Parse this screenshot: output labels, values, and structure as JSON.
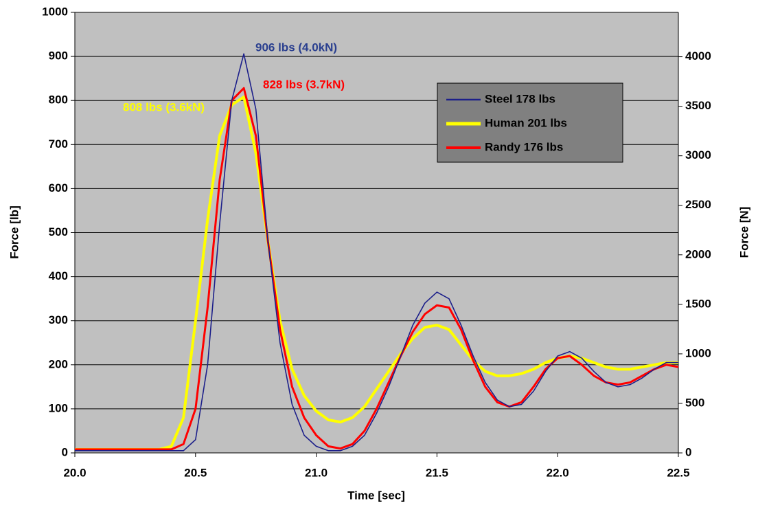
{
  "chart_data": {
    "type": "line",
    "x": [
      20.0,
      20.05,
      20.1,
      20.15,
      20.2,
      20.25,
      20.3,
      20.35,
      20.4,
      20.45,
      20.5,
      20.55,
      20.6,
      20.65,
      20.7,
      20.75,
      20.8,
      20.85,
      20.9,
      20.95,
      21.0,
      21.05,
      21.1,
      21.15,
      21.2,
      21.25,
      21.3,
      21.35,
      21.4,
      21.45,
      21.5,
      21.55,
      21.6,
      21.65,
      21.7,
      21.75,
      21.8,
      21.85,
      21.9,
      21.95,
      22.0,
      22.05,
      22.1,
      22.15,
      22.2,
      22.25,
      22.3,
      22.35,
      22.4,
      22.45,
      22.5
    ],
    "series": [
      {
        "name": "Steel 178 lbs",
        "color": "#1c1f8a",
        "values": [
          5,
          5,
          5,
          5,
          5,
          5,
          5,
          5,
          5,
          5,
          30,
          200,
          520,
          800,
          906,
          780,
          480,
          250,
          110,
          40,
          15,
          5,
          5,
          15,
          40,
          90,
          150,
          220,
          290,
          340,
          365,
          350,
          290,
          220,
          160,
          120,
          105,
          110,
          140,
          185,
          220,
          230,
          215,
          185,
          160,
          150,
          155,
          170,
          190,
          205,
          205
        ]
      },
      {
        "name": "Human 201 lbs",
        "color": "#ffff00",
        "values": [
          8,
          8,
          8,
          8,
          8,
          8,
          8,
          8,
          15,
          80,
          300,
          530,
          720,
          790,
          808,
          680,
          480,
          300,
          190,
          130,
          95,
          75,
          70,
          80,
          105,
          145,
          185,
          225,
          260,
          285,
          290,
          280,
          245,
          210,
          185,
          175,
          175,
          180,
          190,
          205,
          215,
          220,
          215,
          205,
          195,
          190,
          190,
          195,
          200,
          205,
          205
        ]
      },
      {
        "name": "Randy 176 lbs",
        "color": "#ff0000",
        "values": [
          8,
          8,
          8,
          8,
          8,
          8,
          8,
          8,
          8,
          20,
          100,
          330,
          620,
          800,
          828,
          720,
          480,
          280,
          150,
          80,
          40,
          15,
          10,
          20,
          50,
          100,
          160,
          220,
          275,
          315,
          335,
          330,
          280,
          210,
          150,
          115,
          105,
          115,
          150,
          190,
          215,
          220,
          200,
          175,
          160,
          155,
          160,
          175,
          190,
          200,
          195
        ]
      }
    ],
    "annotations": [
      "906 lbs (4.0kN)",
      "808 lbs (3.6kN)",
      "828 lbs (3.7kN)"
    ],
    "xlabel": "Time [sec]",
    "ylabel": "Force [lb]",
    "y2label": "Force [N]",
    "xlim": [
      20,
      22.5
    ],
    "xticks": [
      {
        "value": 20,
        "label": "20.0"
      },
      20.5,
      {
        "value": 21,
        "label": "21.0"
      },
      21.5,
      {
        "value": 22,
        "label": "22.0"
      },
      22.5
    ],
    "ylim": [
      0,
      1000
    ],
    "yticks": [
      0,
      100,
      200,
      300,
      400,
      500,
      600,
      700,
      800,
      900,
      1000
    ],
    "y2lim": [
      0,
      4448
    ],
    "y2ticks": [
      0,
      500,
      1000,
      1500,
      2000,
      2500,
      3000,
      3500,
      4000
    ],
    "grid": true
  }
}
